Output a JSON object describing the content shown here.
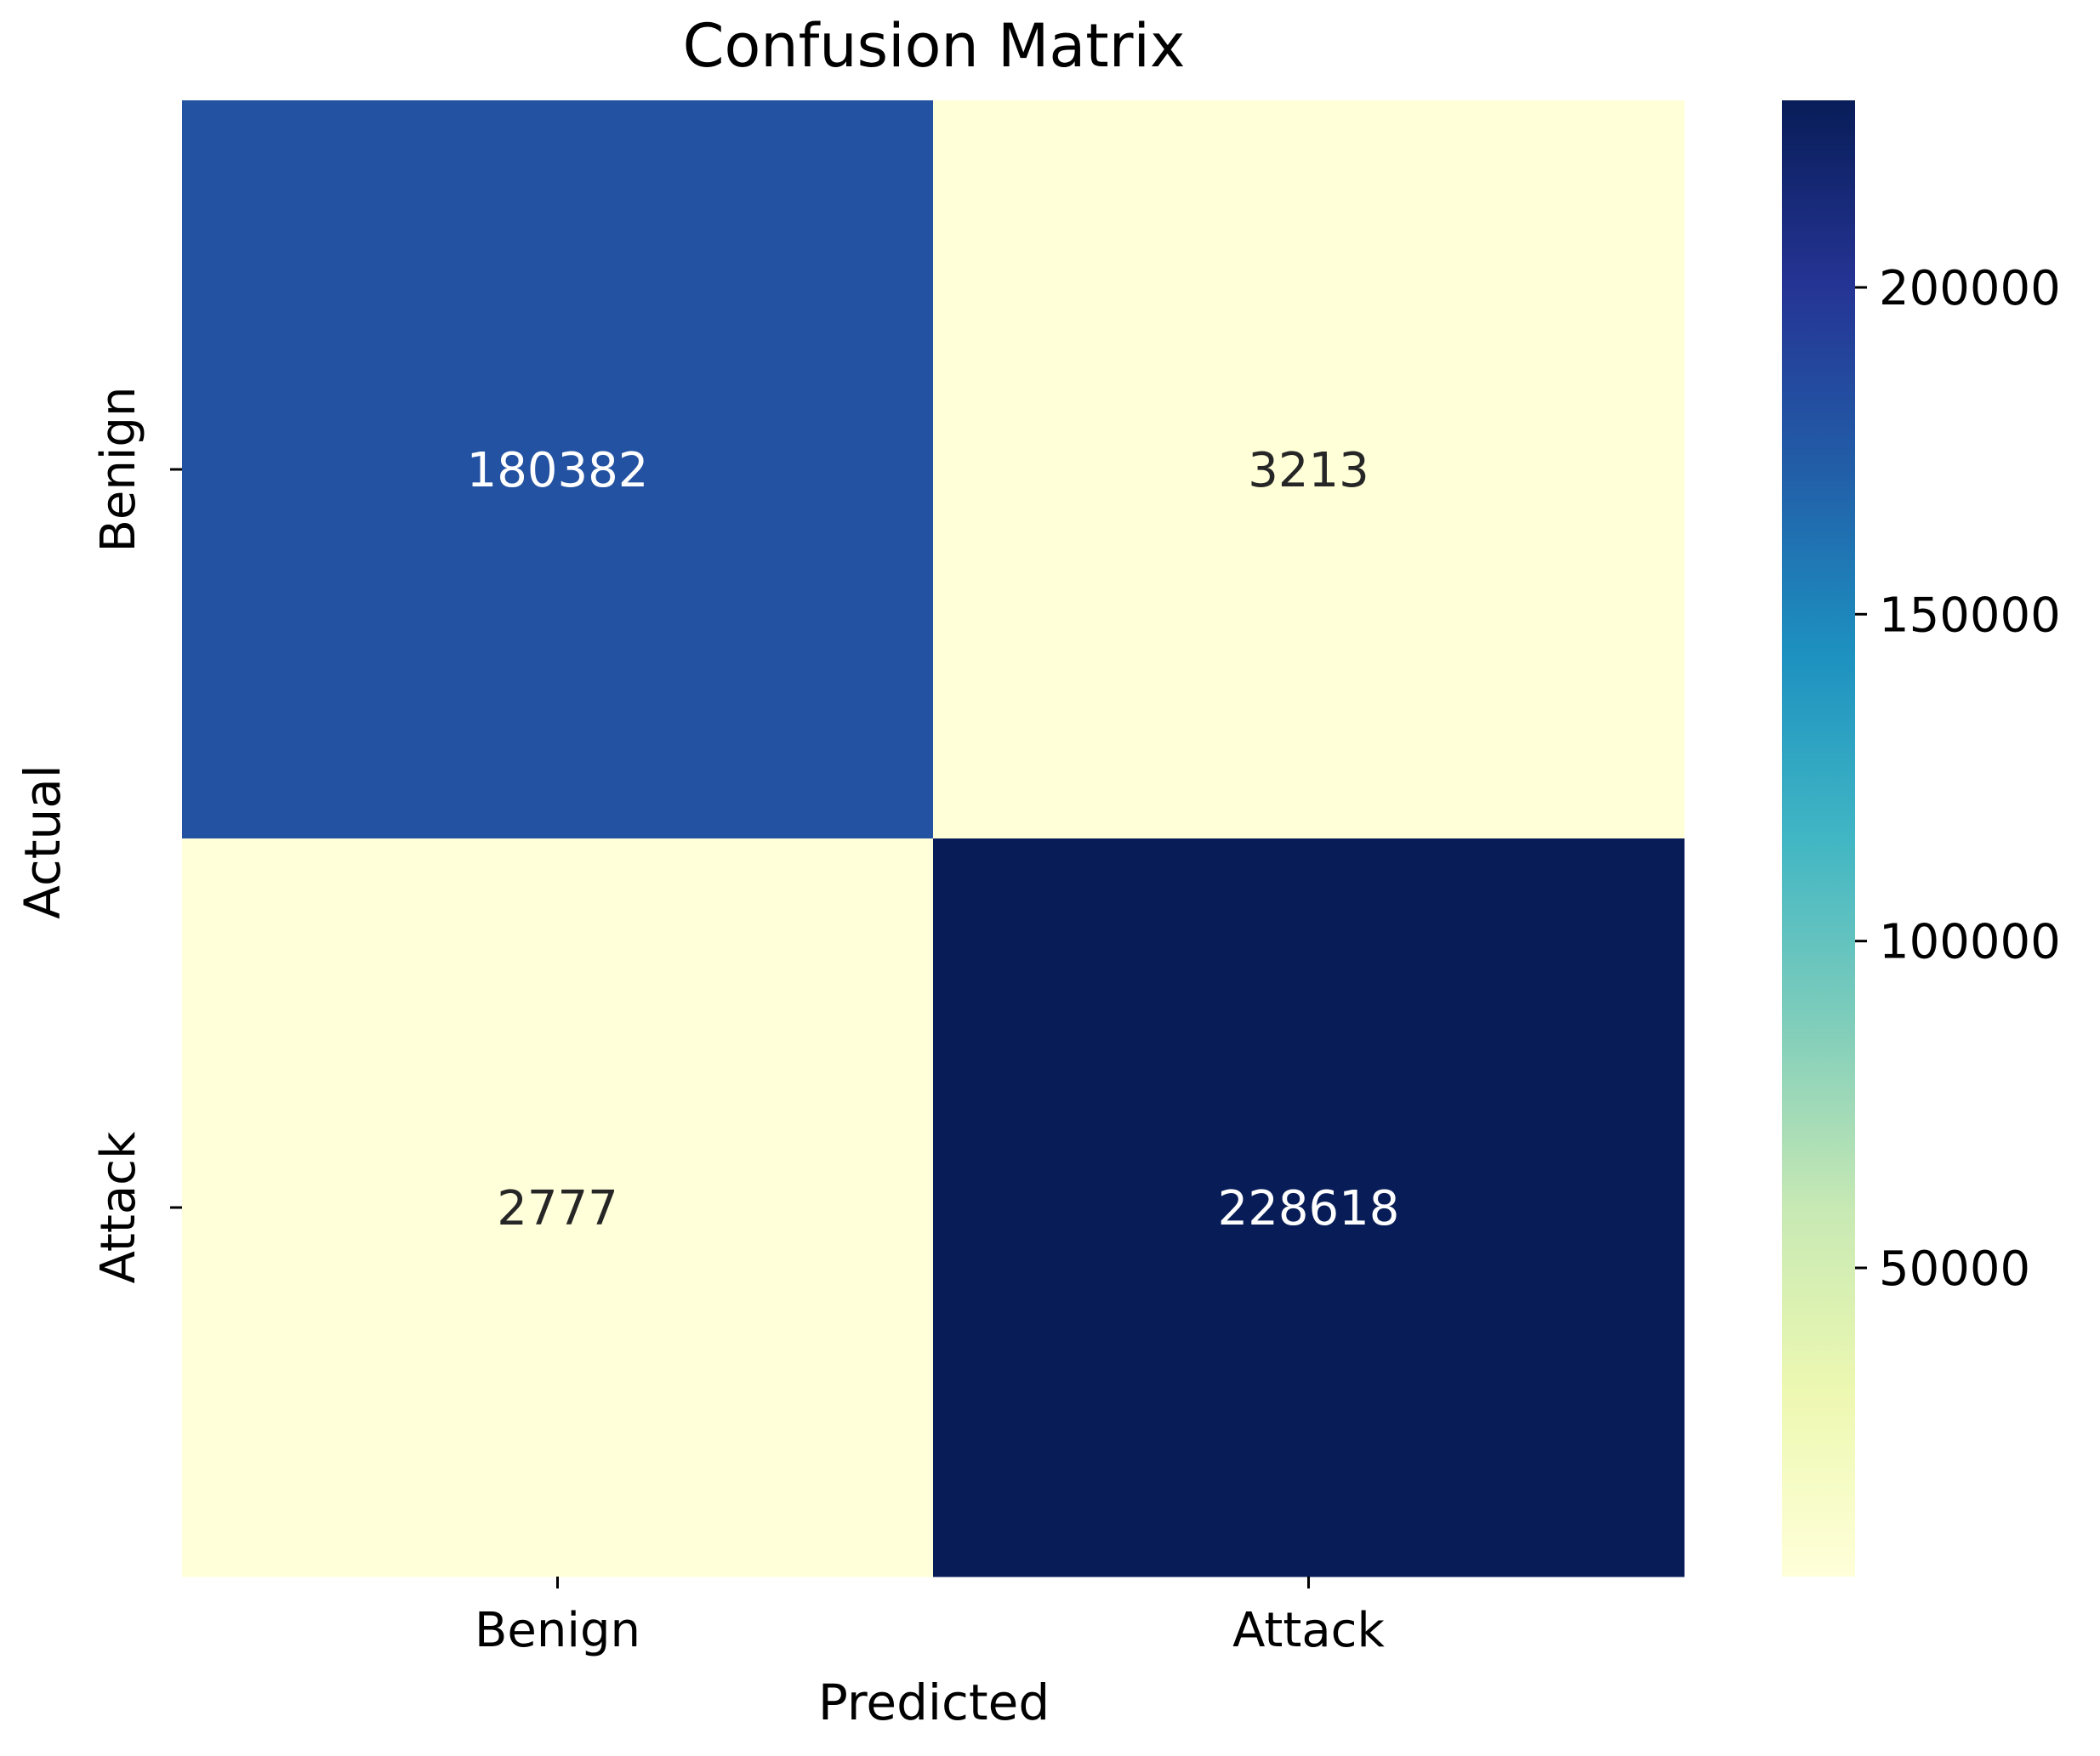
{
  "chart_data": {
    "type": "heatmap",
    "title": "Confusion Matrix",
    "xlabel": "Predicted",
    "ylabel": "Actual",
    "x_categories": [
      "Benign",
      "Attack"
    ],
    "y_categories": [
      "Benign",
      "Attack"
    ],
    "values": [
      [
        180382,
        3213
      ],
      [
        2777,
        228618
      ]
    ],
    "cell_labels": [
      [
        "180382",
        "3213"
      ],
      [
        "2777",
        "228618"
      ]
    ],
    "colormap": "YlGnBu",
    "colorbar": {
      "min": 2777,
      "max": 228618,
      "ticks": [
        50000,
        100000,
        150000,
        200000
      ],
      "tick_labels": [
        "50000",
        "100000",
        "150000",
        "200000"
      ]
    },
    "colors": {
      "light_text": "#ffffff",
      "dark_text": "#262626"
    }
  }
}
